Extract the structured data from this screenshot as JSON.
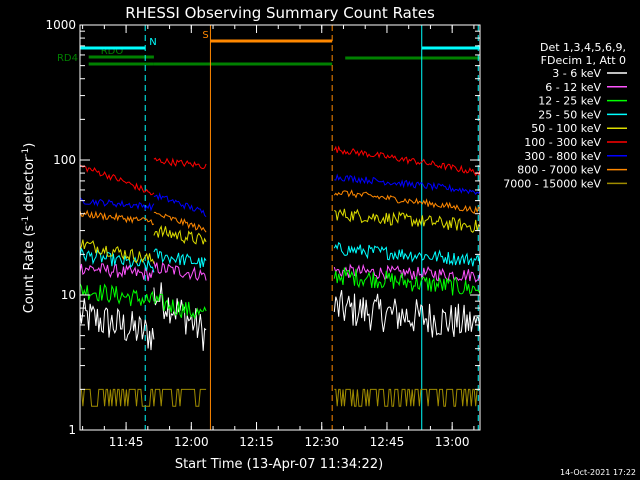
{
  "chart_data": {
    "type": "line",
    "title": "RHESSI Observing Summary Count Rates",
    "xlabel": "Start Time (13-Apr-07 11:34:22)",
    "ylabel_parts": [
      "Count Rate (s",
      "-1",
      " detector",
      "-1",
      ")"
    ],
    "y_scale": "log",
    "ylim": [
      1,
      1000
    ],
    "xlim_minutes": [
      0,
      92
    ],
    "x_ticks": [
      {
        "label": "11:45",
        "min": 10.6
      },
      {
        "label": "12:00",
        "min": 25.6
      },
      {
        "label": "12:15",
        "min": 40.6
      },
      {
        "label": "12:30",
        "min": 55.6
      },
      {
        "label": "12:45",
        "min": 70.6
      },
      {
        "label": "13:00",
        "min": 85.6
      }
    ],
    "y_ticks": [
      {
        "label": "1",
        "value": 1
      },
      {
        "label": "10",
        "value": 10
      },
      {
        "label": "100",
        "value": 100
      },
      {
        "label": "1000",
        "value": 1000
      }
    ],
    "legend_header": [
      "Det 1,3,4,5,6,9,",
      "FDecim 1, Att 0"
    ],
    "series": [
      {
        "name": "3 - 6 keV",
        "color": "#ffffff",
        "s1": [
          7,
          5
        ],
        "s2": [
          10,
          5
        ],
        "s3": [
          8,
          6
        ],
        "noise": 0.14
      },
      {
        "name": "6 - 12 keV",
        "color": "#ff55ff",
        "s1": [
          16,
          14
        ],
        "s2": [
          16,
          14
        ],
        "s3": [
          15,
          14
        ],
        "noise": 0.05
      },
      {
        "name": "12 - 25 keV",
        "color": "#00ff00",
        "s1": [
          11,
          9
        ],
        "s2": [
          9,
          7
        ],
        "s3": [
          14,
          11
        ],
        "noise": 0.07
      },
      {
        "name": "25 - 50 keV",
        "color": "#00ffff",
        "s1": [
          20,
          16
        ],
        "s2": [
          20,
          17
        ],
        "s3": [
          22,
          18
        ],
        "noise": 0.05
      },
      {
        "name": "50 - 100 keV",
        "color": "#dddd00",
        "s1": [
          24,
          18
        ],
        "s2": [
          30,
          25
        ],
        "s3": [
          40,
          32
        ],
        "noise": 0.05
      },
      {
        "name": "100 - 300 keV",
        "color": "#ff0000",
        "s1": [
          90,
          55
        ],
        "s2": [
          100,
          90
        ],
        "s3": [
          120,
          80
        ],
        "noise": 0.025
      },
      {
        "name": "300 - 800 keV",
        "color": "#0000ff",
        "s1": [
          50,
          45
        ],
        "s2": [
          55,
          40
        ],
        "s3": [
          75,
          58
        ],
        "noise": 0.025
      },
      {
        "name": "800 - 7000 keV",
        "color": "#ff8800",
        "s1": [
          40,
          35
        ],
        "s2": [
          40,
          30
        ],
        "s3": [
          58,
          42
        ],
        "noise": 0.025
      },
      {
        "name": "7000 - 15000 keV",
        "color": "#a08c00",
        "s1": [
          2,
          2
        ],
        "s2": [
          1.5,
          1.5
        ],
        "s3": [
          1.5,
          2
        ],
        "noise": 0
      }
    ],
    "segments_min": {
      "seg1": [
        0,
        17
      ],
      "seg2": [
        17,
        29
      ],
      "seg3": [
        58.5,
        92
      ]
    },
    "flag_bars": [
      {
        "label": "RD4",
        "color": "#008000",
        "row": "rd4",
        "ranges": [
          [
            2,
            17
          ],
          [
            17,
            58
          ]
        ]
      },
      {
        "label": "RDO",
        "color": "#008000",
        "row": "rdo",
        "ranges": [
          [
            2,
            17
          ]
        ]
      },
      {
        "label": "N",
        "color": "#00ffff",
        "row": "n",
        "ranges": [
          [
            0,
            15
          ]
        ]
      },
      {
        "label": "S",
        "color": "#ff8800",
        "row": "s",
        "ranges": [
          [
            30,
            58
          ]
        ]
      },
      {
        "label": "",
        "color": "#00ffff",
        "row": "n2",
        "ranges": [
          [
            78.6,
            92
          ]
        ]
      },
      {
        "label": "",
        "color": "#008000",
        "row": "rd4b",
        "ranges": [
          [
            61,
            92
          ]
        ]
      }
    ],
    "vlines": [
      {
        "min": 0,
        "color": "#00ffff",
        "style": "solid"
      },
      {
        "min": 15,
        "color": "#00ffff",
        "style": "dashed"
      },
      {
        "min": 30,
        "color": "#ff8800",
        "style": "solid"
      },
      {
        "min": 58,
        "color": "#ff8800",
        "style": "dashed"
      },
      {
        "min": 78.6,
        "color": "#00ffff",
        "style": "solid"
      },
      {
        "min": 91.6,
        "color": "#00ffff",
        "style": "dashed"
      }
    ],
    "footer": "14-Oct-2021 17:22"
  }
}
